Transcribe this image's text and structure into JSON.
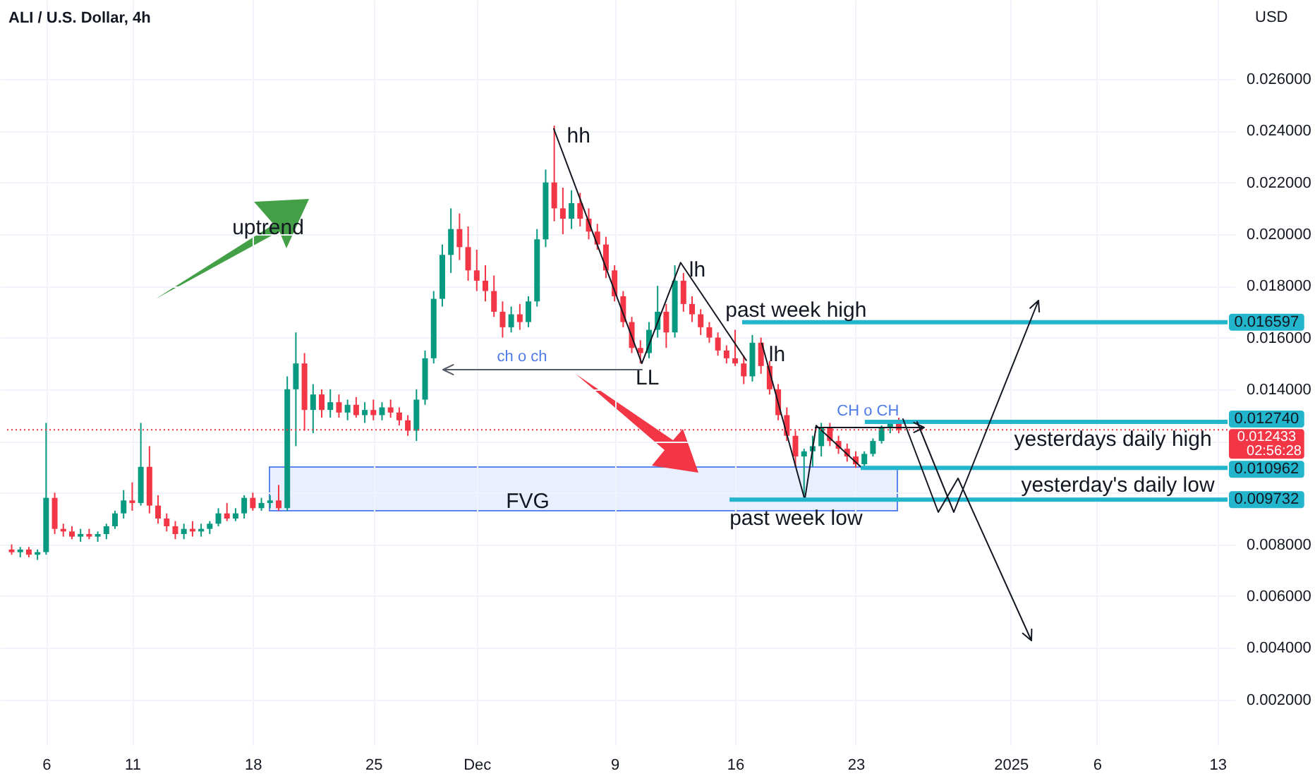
{
  "chart_data": {
    "type": "candlestick",
    "title": "ALI / U.S. Dollar, 4h",
    "ylabel": "USD",
    "grid": true,
    "xlim": [
      "2024-11-03T17:36",
      "2025-01-13T14:00"
    ],
    "ylim": [
      0.00024,
      0.02906
    ],
    "xticks": [
      {
        "value": "2024-11-06",
        "label": "6"
      },
      {
        "value": "2024-11-11",
        "label": "11"
      },
      {
        "value": "2024-11-18",
        "label": "18"
      },
      {
        "value": "2024-11-25",
        "label": "25"
      },
      {
        "value": "2024-12-01",
        "label": "Dec"
      },
      {
        "value": "2024-12-09",
        "label": "9"
      },
      {
        "value": "2024-12-16",
        "label": "16"
      },
      {
        "value": "2024-12-23",
        "label": "23"
      },
      {
        "value": "2025-01-01",
        "label": "2025"
      },
      {
        "value": "2025-01-06",
        "label": "6"
      },
      {
        "value": "2025-01-13",
        "label": "13"
      }
    ],
    "yticks": [
      {
        "value": 0.002,
        "label": "0.002000"
      },
      {
        "value": 0.004,
        "label": "0.004000"
      },
      {
        "value": 0.006,
        "label": "0.006000"
      },
      {
        "value": 0.008,
        "label": "0.008000"
      },
      {
        "value": 0.01,
        "label": null
      },
      {
        "value": 0.012,
        "label": null
      },
      {
        "value": 0.014,
        "label": "0.014000"
      },
      {
        "value": 0.016,
        "label": "0.016000"
      },
      {
        "value": 0.018,
        "label": "0.018000"
      },
      {
        "value": 0.02,
        "label": "0.020000"
      },
      {
        "value": 0.022,
        "label": "0.022000"
      },
      {
        "value": 0.024,
        "label": "0.024000"
      },
      {
        "value": 0.026,
        "label": "0.026000"
      }
    ],
    "x": [
      "2024-11-04T00:00",
      "2024-11-04T12:00",
      "2024-11-05T00:00",
      "2024-11-05T12:00",
      "2024-11-06T00:00",
      "2024-11-06T12:00",
      "2024-11-07T00:00",
      "2024-11-07T12:00",
      "2024-11-08T00:00",
      "2024-11-08T12:00",
      "2024-11-09T00:00",
      "2024-11-09T12:00",
      "2024-11-10T00:00",
      "2024-11-10T12:00",
      "2024-11-11T00:00",
      "2024-11-11T12:00",
      "2024-11-12T00:00",
      "2024-11-12T12:00",
      "2024-11-13T00:00",
      "2024-11-13T12:00",
      "2024-11-14T00:00",
      "2024-11-14T12:00",
      "2024-11-15T00:00",
      "2024-11-15T12:00",
      "2024-11-16T00:00",
      "2024-11-16T12:00",
      "2024-11-17T00:00",
      "2024-11-17T12:00",
      "2024-11-18T00:00",
      "2024-11-18T12:00",
      "2024-11-19T00:00",
      "2024-11-19T12:00",
      "2024-11-20T00:00",
      "2024-11-20T12:00",
      "2024-11-21T00:00",
      "2024-11-21T12:00",
      "2024-11-22T00:00",
      "2024-11-22T12:00",
      "2024-11-23T00:00",
      "2024-11-23T12:00",
      "2024-11-24T00:00",
      "2024-11-24T12:00",
      "2024-11-25T00:00",
      "2024-11-25T12:00",
      "2024-11-26T00:00",
      "2024-11-26T12:00",
      "2024-11-27T00:00",
      "2024-11-27T12:00",
      "2024-11-28T00:00",
      "2024-11-28T12:00",
      "2024-11-29T00:00",
      "2024-11-29T12:00",
      "2024-11-30T00:00",
      "2024-11-30T12:00",
      "2024-12-01T00:00",
      "2024-12-01T12:00",
      "2024-12-02T00:00",
      "2024-12-02T12:00",
      "2024-12-03T00:00",
      "2024-12-03T12:00",
      "2024-12-04T00:00",
      "2024-12-04T12:00",
      "2024-12-05T00:00",
      "2024-12-05T12:00",
      "2024-12-06T00:00",
      "2024-12-06T12:00",
      "2024-12-07T00:00",
      "2024-12-07T12:00",
      "2024-12-08T00:00",
      "2024-12-08T12:00",
      "2024-12-09T00:00",
      "2024-12-09T12:00",
      "2024-12-10T00:00",
      "2024-12-10T12:00",
      "2024-12-11T00:00",
      "2024-12-11T12:00",
      "2024-12-12T00:00",
      "2024-12-12T12:00",
      "2024-12-13T00:00",
      "2024-12-13T12:00",
      "2024-12-14T00:00",
      "2024-12-14T12:00",
      "2024-12-15T00:00",
      "2024-12-15T12:00",
      "2024-12-16T00:00",
      "2024-12-16T12:00",
      "2024-12-17T00:00",
      "2024-12-17T12:00",
      "2024-12-18T00:00",
      "2024-12-18T12:00",
      "2024-12-19T00:00",
      "2024-12-19T12:00",
      "2024-12-20T00:00",
      "2024-12-20T12:00",
      "2024-12-21T00:00",
      "2024-12-21T12:00",
      "2024-12-22T00:00",
      "2024-12-22T12:00",
      "2024-12-23T00:00",
      "2024-12-23T12:00",
      "2024-12-24T00:00",
      "2024-12-24T12:00",
      "2024-12-25T00:00",
      "2024-12-25T12:00"
    ],
    "ohlc": [
      [
        0.0078,
        0.008,
        0.0076,
        0.0077
      ],
      [
        0.0077,
        0.0079,
        0.0075,
        0.0078
      ],
      [
        0.0078,
        0.0079,
        0.0075,
        0.0076
      ],
      [
        0.0076,
        0.0078,
        0.0074,
        0.0077
      ],
      [
        0.0077,
        0.0127,
        0.0076,
        0.0098
      ],
      [
        0.0098,
        0.01,
        0.0084,
        0.0086
      ],
      [
        0.0086,
        0.0088,
        0.0083,
        0.0085
      ],
      [
        0.0085,
        0.0087,
        0.0082,
        0.0083
      ],
      [
        0.0083,
        0.0086,
        0.0081,
        0.0084
      ],
      [
        0.0084,
        0.0086,
        0.0082,
        0.0083
      ],
      [
        0.0083,
        0.0085,
        0.0081,
        0.0084
      ],
      [
        0.0084,
        0.0088,
        0.0082,
        0.0087
      ],
      [
        0.0087,
        0.0093,
        0.0086,
        0.0092
      ],
      [
        0.0092,
        0.0101,
        0.009,
        0.0097
      ],
      [
        0.0097,
        0.0104,
        0.0093,
        0.0096
      ],
      [
        0.0096,
        0.0127,
        0.0095,
        0.011
      ],
      [
        0.011,
        0.0118,
        0.0092,
        0.0095
      ],
      [
        0.0095,
        0.0099,
        0.0088,
        0.009
      ],
      [
        0.009,
        0.0092,
        0.0085,
        0.0087
      ],
      [
        0.0087,
        0.0089,
        0.0082,
        0.0084
      ],
      [
        0.0084,
        0.0088,
        0.0082,
        0.0086
      ],
      [
        0.0086,
        0.0089,
        0.0083,
        0.0085
      ],
      [
        0.0085,
        0.0088,
        0.0083,
        0.0086
      ],
      [
        0.0086,
        0.0089,
        0.0084,
        0.0088
      ],
      [
        0.0088,
        0.0094,
        0.0087,
        0.0092
      ],
      [
        0.0092,
        0.0096,
        0.0089,
        0.009
      ],
      [
        0.009,
        0.0094,
        0.0089,
        0.0092
      ],
      [
        0.0092,
        0.0099,
        0.009,
        0.0098
      ],
      [
        0.0098,
        0.01,
        0.0093,
        0.0094
      ],
      [
        0.0094,
        0.0098,
        0.0093,
        0.0096
      ],
      [
        0.0096,
        0.0099,
        0.0094,
        0.0097
      ],
      [
        0.0097,
        0.0103,
        0.0093,
        0.0094
      ],
      [
        0.0094,
        0.0145,
        0.0093,
        0.014
      ],
      [
        0.014,
        0.0162,
        0.0118,
        0.015
      ],
      [
        0.015,
        0.0154,
        0.0124,
        0.0132
      ],
      [
        0.0132,
        0.0142,
        0.0123,
        0.0138
      ],
      [
        0.0138,
        0.014,
        0.0129,
        0.0132
      ],
      [
        0.0132,
        0.014,
        0.0129,
        0.0135
      ],
      [
        0.0135,
        0.0138,
        0.0129,
        0.0131
      ],
      [
        0.0131,
        0.0136,
        0.0128,
        0.0134
      ],
      [
        0.0134,
        0.0137,
        0.0129,
        0.013
      ],
      [
        0.013,
        0.0135,
        0.0127,
        0.0132
      ],
      [
        0.0132,
        0.0136,
        0.0128,
        0.013
      ],
      [
        0.013,
        0.0135,
        0.0128,
        0.0133
      ],
      [
        0.0133,
        0.0136,
        0.0129,
        0.0131
      ],
      [
        0.0131,
        0.0133,
        0.0126,
        0.0128
      ],
      [
        0.0128,
        0.013,
        0.0122,
        0.0124
      ],
      [
        0.0124,
        0.014,
        0.012,
        0.0136
      ],
      [
        0.0136,
        0.0155,
        0.0134,
        0.0152
      ],
      [
        0.0152,
        0.0178,
        0.015,
        0.0175
      ],
      [
        0.0175,
        0.0196,
        0.0172,
        0.0192
      ],
      [
        0.0192,
        0.021,
        0.0185,
        0.0202
      ],
      [
        0.0202,
        0.0208,
        0.019,
        0.0195
      ],
      [
        0.0195,
        0.0203,
        0.0182,
        0.0186
      ],
      [
        0.0186,
        0.0194,
        0.0178,
        0.0182
      ],
      [
        0.0182,
        0.0188,
        0.0174,
        0.0178
      ],
      [
        0.0178,
        0.0184,
        0.0168,
        0.017
      ],
      [
        0.017,
        0.0174,
        0.016,
        0.0164
      ],
      [
        0.0164,
        0.0172,
        0.0162,
        0.0169
      ],
      [
        0.0169,
        0.0173,
        0.0163,
        0.0166
      ],
      [
        0.0166,
        0.0176,
        0.0164,
        0.0174
      ],
      [
        0.0174,
        0.0202,
        0.0172,
        0.0198
      ],
      [
        0.0198,
        0.0225,
        0.0195,
        0.022
      ],
      [
        0.022,
        0.0242,
        0.0205,
        0.021
      ],
      [
        0.021,
        0.0218,
        0.02,
        0.0206
      ],
      [
        0.0206,
        0.0217,
        0.0202,
        0.0212
      ],
      [
        0.0212,
        0.0216,
        0.0203,
        0.0206
      ],
      [
        0.0206,
        0.021,
        0.0198,
        0.0201
      ],
      [
        0.0201,
        0.0204,
        0.0194,
        0.0196
      ],
      [
        0.0196,
        0.0199,
        0.0183,
        0.0186
      ],
      [
        0.0186,
        0.0188,
        0.0174,
        0.0176
      ],
      [
        0.0176,
        0.0178,
        0.0164,
        0.0166
      ],
      [
        0.0166,
        0.0168,
        0.0154,
        0.0156
      ],
      [
        0.0156,
        0.0159,
        0.015,
        0.0154
      ],
      [
        0.0154,
        0.0166,
        0.0152,
        0.0163
      ],
      [
        0.0163,
        0.018,
        0.016,
        0.017
      ],
      [
        0.017,
        0.0173,
        0.0156,
        0.0162
      ],
      [
        0.0162,
        0.0188,
        0.016,
        0.0182
      ],
      [
        0.0182,
        0.0185,
        0.017,
        0.0173
      ],
      [
        0.0173,
        0.0176,
        0.0166,
        0.0169
      ],
      [
        0.0169,
        0.0171,
        0.0161,
        0.0164
      ],
      [
        0.0164,
        0.0166,
        0.0158,
        0.016
      ],
      [
        0.016,
        0.0162,
        0.0153,
        0.0155
      ],
      [
        0.0155,
        0.0157,
        0.015,
        0.0152
      ],
      [
        0.0152,
        0.0163,
        0.0149,
        0.015
      ],
      [
        0.015,
        0.0153,
        0.0142,
        0.0145
      ],
      [
        0.0145,
        0.0161,
        0.0143,
        0.0158
      ],
      [
        0.0158,
        0.016,
        0.0146,
        0.0149
      ],
      [
        0.0149,
        0.0151,
        0.0138,
        0.014
      ],
      [
        0.014,
        0.0142,
        0.0128,
        0.013
      ],
      [
        0.013,
        0.0133,
        0.012,
        0.0122
      ],
      [
        0.0122,
        0.0124,
        0.011,
        0.0114
      ],
      [
        0.0114,
        0.0117,
        0.00973,
        0.0116
      ],
      [
        0.0116,
        0.0122,
        0.011,
        0.0118
      ],
      [
        0.0118,
        0.0127,
        0.0114,
        0.0125
      ],
      [
        0.0125,
        0.0127,
        0.0118,
        0.012
      ],
      [
        0.012,
        0.0122,
        0.0115,
        0.0117
      ],
      [
        0.0117,
        0.0119,
        0.0112,
        0.0114
      ],
      [
        0.0114,
        0.0116,
        0.01096,
        0.0111
      ],
      [
        0.0111,
        0.0116,
        0.011,
        0.0115
      ],
      [
        0.0115,
        0.0121,
        0.0114,
        0.012
      ],
      [
        0.012,
        0.0126,
        0.0119,
        0.0125
      ],
      [
        0.0125,
        0.01274,
        0.0123,
        0.0127
      ],
      [
        0.0127,
        0.0129,
        0.0123,
        0.012433
      ]
    ],
    "colors": [
      "#f23645",
      "#089981",
      "#f23645",
      "#089981",
      "#089981",
      "#f23645",
      "#f23645",
      "#f23645",
      "#089981",
      "#f23645",
      "#089981",
      "#089981",
      "#089981",
      "#089981",
      "#f23645",
      "#089981",
      "#f23645",
      "#f23645",
      "#f23645",
      "#f23645",
      "#089981",
      "#f23645",
      "#089981",
      "#089981",
      "#089981",
      "#f23645",
      "#089981",
      "#089981",
      "#f23645",
      "#089981",
      "#089981",
      "#f23645",
      "#089981",
      "#089981",
      "#f23645",
      "#089981",
      "#f23645",
      "#089981",
      "#f23645",
      "#089981",
      "#f23645",
      "#089981",
      "#f23645",
      "#089981",
      "#f23645",
      "#f23645",
      "#f23645",
      "#089981",
      "#089981",
      "#089981",
      "#089981",
      "#089981",
      "#f23645",
      "#f23645",
      "#f23645",
      "#f23645",
      "#f23645",
      "#f23645",
      "#089981",
      "#f23645",
      "#089981",
      "#089981",
      "#089981",
      "#f23645",
      "#f23645",
      "#089981",
      "#f23645",
      "#f23645",
      "#f23645",
      "#f23645",
      "#f23645",
      "#f23645",
      "#f23645",
      "#f23645",
      "#089981",
      "#089981",
      "#f23645",
      "#089981",
      "#f23645",
      "#f23645",
      "#f23645",
      "#f23645",
      "#f23645",
      "#f23645",
      "#f23645",
      "#f23645",
      "#089981",
      "#f23645",
      "#f23645",
      "#f23645",
      "#f23645",
      "#f23645",
      "#089981",
      "#089981",
      "#089981",
      "#f23645",
      "#f23645",
      "#f23645",
      "#f23645",
      "#089981",
      "#089981",
      "#089981",
      "#089981",
      "#f23645"
    ],
    "series": [
      {
        "type": "line",
        "color": "#131722",
        "x": [
          "2024-12-05T11:00",
          "2024-12-10T14:00",
          "2024-12-12T20:00",
          "2024-12-16T16:00"
        ],
        "values": [
          0.0241,
          0.015,
          0.0189,
          0.0151
        ]
      },
      {
        "type": "line",
        "color": "#131722",
        "x": [
          "2024-12-17T13:00",
          "2024-12-20T01:00",
          "2024-12-20T17:00",
          "2024-12-23T07:00"
        ],
        "values": [
          0.0158,
          0.00973,
          0.0126,
          0.011
        ]
      }
    ],
    "ref_lines": [
      {
        "axis": "y",
        "value": 0.016597,
        "label": "0.016597",
        "color": "#22b5cc",
        "line_style": "solid"
      },
      {
        "axis": "y",
        "value": 0.01274,
        "label": "0.012740",
        "color": "#22b5cc",
        "line_style": "solid"
      },
      {
        "axis": "y",
        "value": 0.012433,
        "label": "0.012433",
        "color": "#f23645",
        "line_style": "dotted"
      },
      {
        "axis": "y",
        "value": 0.010962,
        "label": "0.010962",
        "color": "#22b5cc",
        "line_style": "solid"
      },
      {
        "axis": "y",
        "value": 0.009732,
        "label": "0.009732",
        "color": "#22b5cc",
        "line_style": "solid"
      }
    ],
    "annotations": [
      "uptrend",
      {
        "text": "hh",
        "x": "2024-12-05T11:00",
        "y": 0.0241
      },
      {
        "text": "lh",
        "x": "2024-12-12T20:00",
        "y": 0.0189
      },
      {
        "text": "LL",
        "x": "2024-12-10T14:00",
        "y": 0.015
      },
      {
        "text": "lh",
        "x": "2024-12-17T13:00",
        "y": 0.0158
      },
      "ch o ch",
      {
        "text": "CH o CH",
        "x": "2024-12-23T17:00",
        "y": 0.0127
      },
      "FVG",
      {
        "text": "past week high",
        "y": 0.016597
      },
      {
        "text": "yesterdays daily high",
        "y": 0.01274
      },
      {
        "text": "yesterday's daily low",
        "y": 0.010962
      },
      {
        "text": "past week low",
        "y": 0.009732
      },
      "02:56:28"
    ]
  }
}
